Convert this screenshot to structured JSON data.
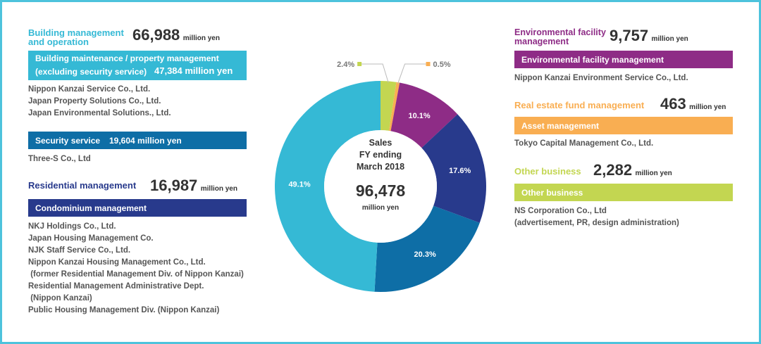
{
  "segments": {
    "building": {
      "title_line1": "Building management",
      "title_line2": "and operation",
      "amount": "66,988",
      "unit": "million yen",
      "bar1_line1": "Building maintenance / property management",
      "bar1_line2": "(excluding security service)",
      "bar1_amount": "47,384 million yen",
      "companies1": [
        "Nippon Kanzai Service Co., Ltd.",
        "Japan Property Solutions Co., Ltd.",
        "Japan Environmental Solutions., Ltd."
      ],
      "bar2_label": "Security service",
      "bar2_amount": "19,604 million yen",
      "companies2": [
        "Three-S Co., Ltd"
      ]
    },
    "residential": {
      "title": "Residential management",
      "amount": "16,987",
      "unit": "million yen",
      "bar_label": "Condominium management",
      "companies": [
        "NKJ Holdings Co., Ltd.",
        "Japan Housing Management Co.",
        "NJK Staff Service Co., Ltd.",
        "Nippon Kanzai Housing Management Co., Ltd.",
        " (former Residential Management Div. of Nippon Kanzai)",
        "Residential Management Administrative Dept.",
        " (Nippon Kanzai)",
        "Public Housing Management Div. (Nippon Kanzai)"
      ]
    },
    "environmental": {
      "title_line1": "Environmental facility",
      "title_line2": "management",
      "amount": "9,757",
      "unit": "million yen",
      "bar_label": "Environmental facility management",
      "companies": [
        "Nippon Kanzai Environment Service Co., Ltd."
      ]
    },
    "realestate": {
      "title": "Real estate fund management",
      "amount": "463",
      "unit": "million yen",
      "bar_label": "Asset management",
      "companies": [
        "Tokyo Capital Management Co., Ltd."
      ]
    },
    "other": {
      "title": "Other business",
      "amount": "2,282",
      "unit": "million yen",
      "bar_label": "Other business",
      "companies": [
        "NS Corporation Co., Ltd",
        "(advertisement, PR, design administration)"
      ]
    }
  },
  "colors": {
    "building_title": "#35b9d5",
    "security_bar": "#0e6ea6",
    "residential": "#283a8c",
    "environmental": "#8e2c86",
    "realestate": "#f9ae52",
    "other": "#c3d651"
  },
  "chart_data": {
    "type": "pie",
    "donut": true,
    "center_label": [
      "Sales",
      "FY ending",
      "March 2018"
    ],
    "center_value": "96,478",
    "center_unit": "million yen",
    "slices": [
      {
        "label": "2.4%",
        "value": 2.4,
        "color": "#c3d651"
      },
      {
        "label": "0.5%",
        "value": 0.5,
        "color": "#f9ae52"
      },
      {
        "label": "10.1%",
        "value": 10.1,
        "color": "#8e2c86"
      },
      {
        "label": "17.6%",
        "value": 17.6,
        "color": "#283a8c"
      },
      {
        "label": "20.3%",
        "value": 20.3,
        "color": "#0e6ea6"
      },
      {
        "label": "49.1%",
        "value": 49.1,
        "color": "#35b9d5"
      }
    ]
  }
}
